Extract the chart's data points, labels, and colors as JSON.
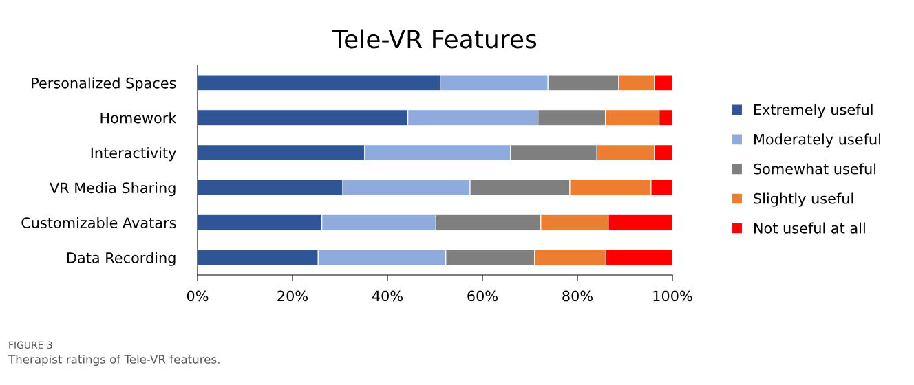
{
  "chart_data": {
    "type": "bar",
    "orientation": "horizontal",
    "stacked": true,
    "title": "Tele-VR Features",
    "categories": [
      "Personalized Spaces",
      "Homework",
      "Interactivity",
      "VR Media Sharing",
      "Customizable Avatars",
      "Data Recording"
    ],
    "series": [
      {
        "name": "Extremely useful",
        "color": "#2f5597",
        "values": [
          51.1,
          44.3,
          35.2,
          30.6,
          26.2,
          25.4
        ]
      },
      {
        "name": "Moderately useful",
        "color": "#8faadc",
        "values": [
          22.7,
          27.4,
          30.7,
          26.8,
          24.0,
          26.9
        ]
      },
      {
        "name": "Somewhat useful",
        "color": "#7f7f7f",
        "values": [
          14.9,
          14.2,
          18.2,
          21.0,
          22.1,
          18.7
        ]
      },
      {
        "name": "Slightly useful",
        "color": "#ed7d31",
        "values": [
          7.5,
          11.3,
          12.1,
          17.1,
          14.2,
          15.0
        ]
      },
      {
        "name": "Not useful at all",
        "color": "#ff0000",
        "values": [
          3.8,
          2.8,
          3.8,
          4.5,
          13.5,
          14.0
        ]
      }
    ],
    "xlim": [
      0,
      100
    ],
    "xticks": [
      {
        "value": 0,
        "label": "0%"
      },
      {
        "value": 20,
        "label": "20%"
      },
      {
        "value": 40,
        "label": "40%"
      },
      {
        "value": 60,
        "label": "60%"
      },
      {
        "value": 80,
        "label": "80%"
      },
      {
        "value": 100,
        "label": "100%"
      }
    ],
    "grid": false,
    "legend": "right",
    "annotations": [
      "FIGURE 3",
      "Therapist ratings of Tele-VR features."
    ]
  }
}
